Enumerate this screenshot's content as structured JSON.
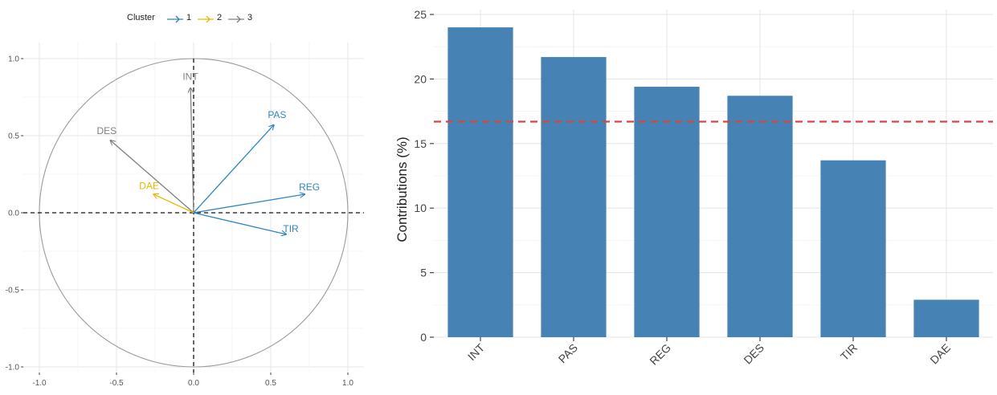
{
  "chart_data": [
    {
      "type": "scatter",
      "subtype": "pca-correlation-circle",
      "legend": {
        "title": "Cluster",
        "position": "top",
        "entries": [
          {
            "label": "1",
            "color": "#2E86C1"
          },
          {
            "label": "2",
            "color": "#E6B800"
          },
          {
            "label": "3",
            "color": "#7F7F7F"
          }
        ]
      },
      "xlim": [
        -1.1,
        1.1
      ],
      "ylim": [
        -1.05,
        1.05
      ],
      "x_ticks": [
        "-1.0",
        "-0.5",
        "0.0",
        "0.5",
        "1.0"
      ],
      "y_ticks": [
        "-1.0",
        "-0.5",
        "0.0",
        "0.5",
        "1.0"
      ],
      "grid": true,
      "unit_circle": true,
      "reference_lines": {
        "x": 0,
        "y": 0,
        "style": "dashed"
      },
      "series": [
        {
          "label": "INT",
          "x": -0.02,
          "y": 0.81,
          "cluster": "3"
        },
        {
          "label": "PAS",
          "x": 0.52,
          "y": 0.57,
          "cluster": "1"
        },
        {
          "label": "DES",
          "x": -0.54,
          "y": 0.47,
          "cluster": "3"
        },
        {
          "label": "DAE",
          "x": -0.26,
          "y": 0.12,
          "cluster": "2"
        },
        {
          "label": "REG",
          "x": 0.72,
          "y": 0.12,
          "cluster": "1"
        },
        {
          "label": "TIR",
          "x": 0.6,
          "y": -0.14,
          "cluster": "1"
        }
      ]
    },
    {
      "type": "bar",
      "categories": [
        "INT",
        "PAS",
        "REG",
        "DES",
        "TIR",
        "DAE"
      ],
      "values": [
        24.0,
        21.7,
        19.4,
        18.7,
        13.7,
        2.9
      ],
      "ylabel": "Contributions (%)",
      "xlabel": "",
      "ylim": [
        0,
        25
      ],
      "y_ticks": [
        "0",
        "5",
        "10",
        "15",
        "20",
        "25"
      ],
      "reference_line": {
        "y": 16.7,
        "color": "#D64545",
        "style": "dashed"
      },
      "bar_color": "#4682B4",
      "grid": true
    }
  ]
}
